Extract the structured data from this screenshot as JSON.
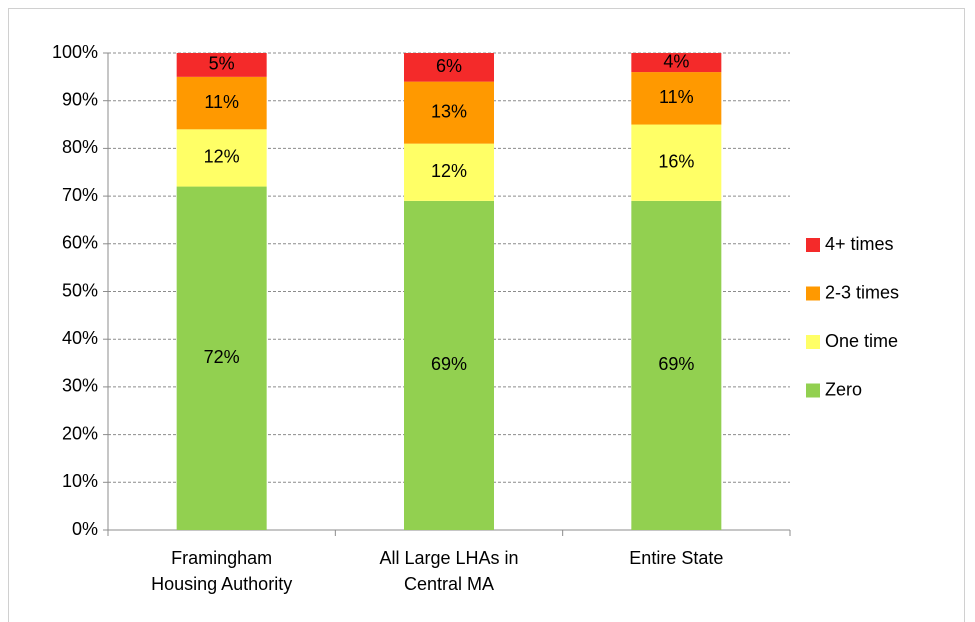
{
  "chart_data": {
    "type": "stacked_bar",
    "categories": [
      "Framingham Housing Authority",
      "All Large LHAs in Central MA",
      "Entire State"
    ],
    "series": [
      {
        "name": "Zero",
        "color": "#92d050",
        "values": [
          72,
          69,
          69
        ],
        "value_labels": [
          "72%",
          "69%",
          "69%"
        ]
      },
      {
        "name": "One time",
        "color": "#ffff66",
        "values": [
          12,
          12,
          16
        ],
        "value_labels": [
          "12%",
          "12%",
          "16%"
        ]
      },
      {
        "name": "2-3 times",
        "color": "#ff9900",
        "values": [
          11,
          13,
          11
        ],
        "value_labels": [
          "11%",
          "13%",
          "11%"
        ]
      },
      {
        "name": "4+ times",
        "color": "#f42a2a",
        "values": [
          5,
          6,
          4
        ],
        "value_labels": [
          "5%",
          "6%",
          "4%"
        ]
      }
    ],
    "ylim": [
      0,
      100
    ],
    "yticks": [
      {
        "value": 0,
        "label": "0%"
      },
      {
        "value": 10,
        "label": "10%"
      },
      {
        "value": 20,
        "label": "20%"
      },
      {
        "value": 30,
        "label": "30%"
      },
      {
        "value": 40,
        "label": "40%"
      },
      {
        "value": 50,
        "label": "50%"
      },
      {
        "value": 60,
        "label": "60%"
      },
      {
        "value": 70,
        "label": "70%"
      },
      {
        "value": 80,
        "label": "80%"
      },
      {
        "value": 90,
        "label": "90%"
      },
      {
        "value": 100,
        "label": "100%"
      }
    ],
    "grid": true,
    "legend": "right"
  }
}
